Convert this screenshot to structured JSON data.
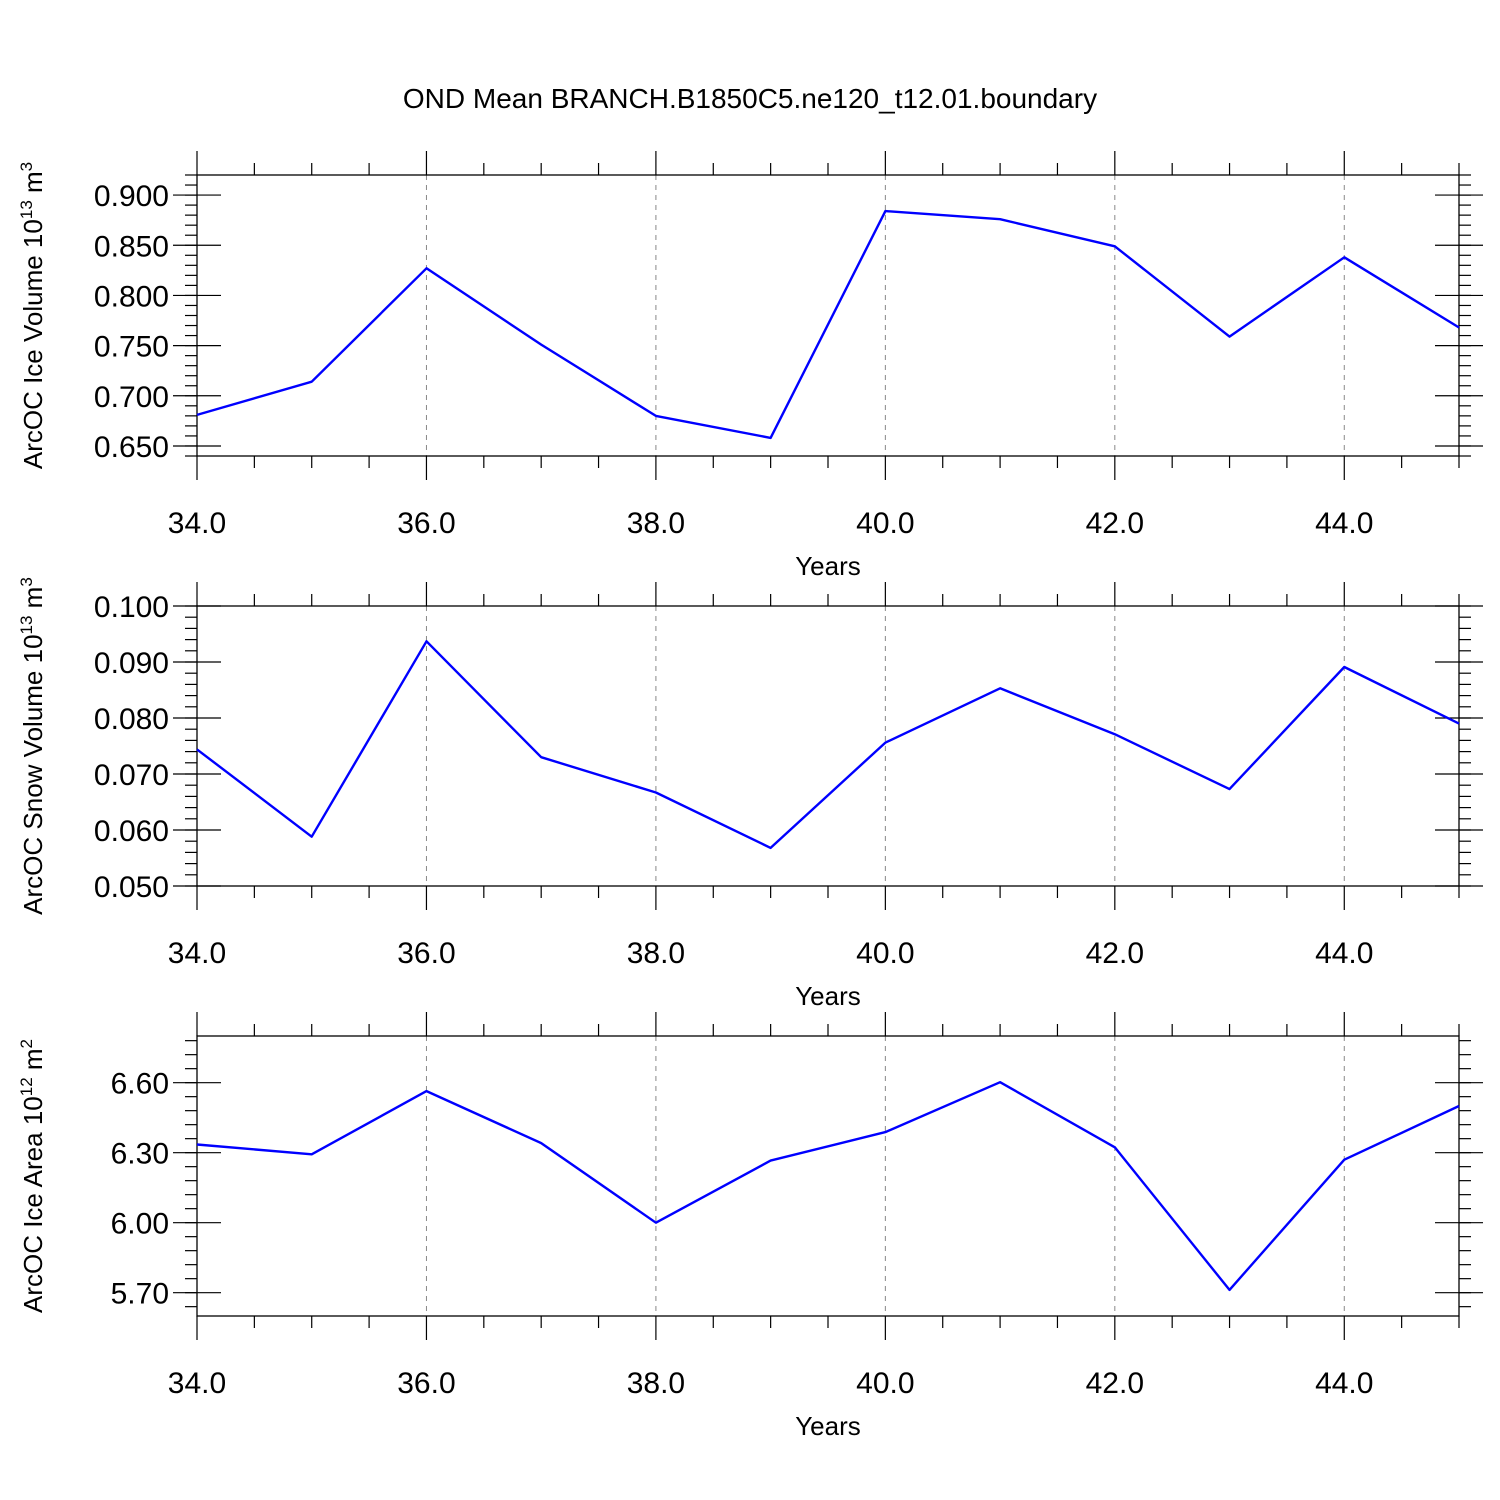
{
  "title": "OND Mean BRANCH.B1850C5.ne120_t12.01.boundary",
  "chart_data": [
    {
      "type": "line",
      "xlabel": "Years",
      "ylabel": {
        "text": "ArcOC Ice Volume 10",
        "sup": "13",
        "unit": " m",
        "unit_sup": "3"
      },
      "xlim": [
        34,
        45
      ],
      "ylim": [
        0.64,
        0.92
      ],
      "x_ticks": [
        34,
        36,
        38,
        40,
        42,
        44
      ],
      "x_tick_labels": [
        "34.0",
        "36.0",
        "38.0",
        "40.0",
        "42.0",
        "44.0"
      ],
      "y_ticks": [
        0.65,
        0.7,
        0.75,
        0.8,
        0.85,
        0.9
      ],
      "y_tick_labels": [
        "0.650",
        "0.700",
        "0.750",
        "0.800",
        "0.850",
        "0.900"
      ],
      "y_minor_step": 0.01,
      "grid": "vertical dashed at major x ticks",
      "x": [
        34,
        35,
        36,
        37,
        38,
        39,
        40,
        41,
        42,
        43,
        44,
        45
      ],
      "series": [
        {
          "values": [
            0.681,
            0.714,
            0.827,
            0.751,
            0.68,
            0.658,
            0.884,
            0.876,
            0.849,
            0.759,
            0.838,
            0.768
          ],
          "color": "#0000ff"
        }
      ]
    },
    {
      "type": "line",
      "xlabel": "Years",
      "ylabel": {
        "text": "ArcOC Snow Volume 10",
        "sup": "13",
        "unit": " m",
        "unit_sup": "3"
      },
      "xlim": [
        34,
        45
      ],
      "ylim": [
        0.05,
        0.1
      ],
      "x_ticks": [
        34,
        36,
        38,
        40,
        42,
        44
      ],
      "x_tick_labels": [
        "34.0",
        "36.0",
        "38.0",
        "40.0",
        "42.0",
        "44.0"
      ],
      "y_ticks": [
        0.05,
        0.06,
        0.07,
        0.08,
        0.09,
        0.1
      ],
      "y_tick_labels": [
        "0.050",
        "0.060",
        "0.070",
        "0.080",
        "0.090",
        "0.100"
      ],
      "y_minor_step": 0.002,
      "grid": "vertical dashed at major x ticks",
      "x": [
        34,
        35,
        36,
        37,
        38,
        39,
        40,
        41,
        42,
        43,
        44,
        45
      ],
      "series": [
        {
          "values": [
            0.0744,
            0.0588,
            0.0937,
            0.073,
            0.0667,
            0.0568,
            0.0756,
            0.0853,
            0.0771,
            0.0673,
            0.0891,
            0.079
          ],
          "color": "#0000ff"
        }
      ]
    },
    {
      "type": "line",
      "xlabel": "Years",
      "ylabel": {
        "text": "ArcOC Ice Area 10",
        "sup": "12",
        "unit": " m",
        "unit_sup": "2"
      },
      "xlim": [
        34,
        45
      ],
      "ylim": [
        5.6,
        6.8
      ],
      "x_ticks": [
        34,
        36,
        38,
        40,
        42,
        44
      ],
      "x_tick_labels": [
        "34.0",
        "36.0",
        "38.0",
        "40.0",
        "42.0",
        "44.0"
      ],
      "y_ticks": [
        5.7,
        6.0,
        6.3,
        6.6
      ],
      "y_tick_labels": [
        "5.70",
        "6.00",
        "6.30",
        "6.60"
      ],
      "y_minor_step": 0.06,
      "grid": "vertical dashed at major x ticks",
      "x": [
        34,
        35,
        36,
        37,
        38,
        39,
        40,
        41,
        42,
        43,
        44,
        45
      ],
      "series": [
        {
          "values": [
            6.335,
            6.293,
            6.564,
            6.341,
            6.0,
            6.266,
            6.388,
            6.602,
            6.323,
            5.712,
            6.27,
            6.5
          ],
          "color": "#0000ff"
        }
      ]
    }
  ]
}
